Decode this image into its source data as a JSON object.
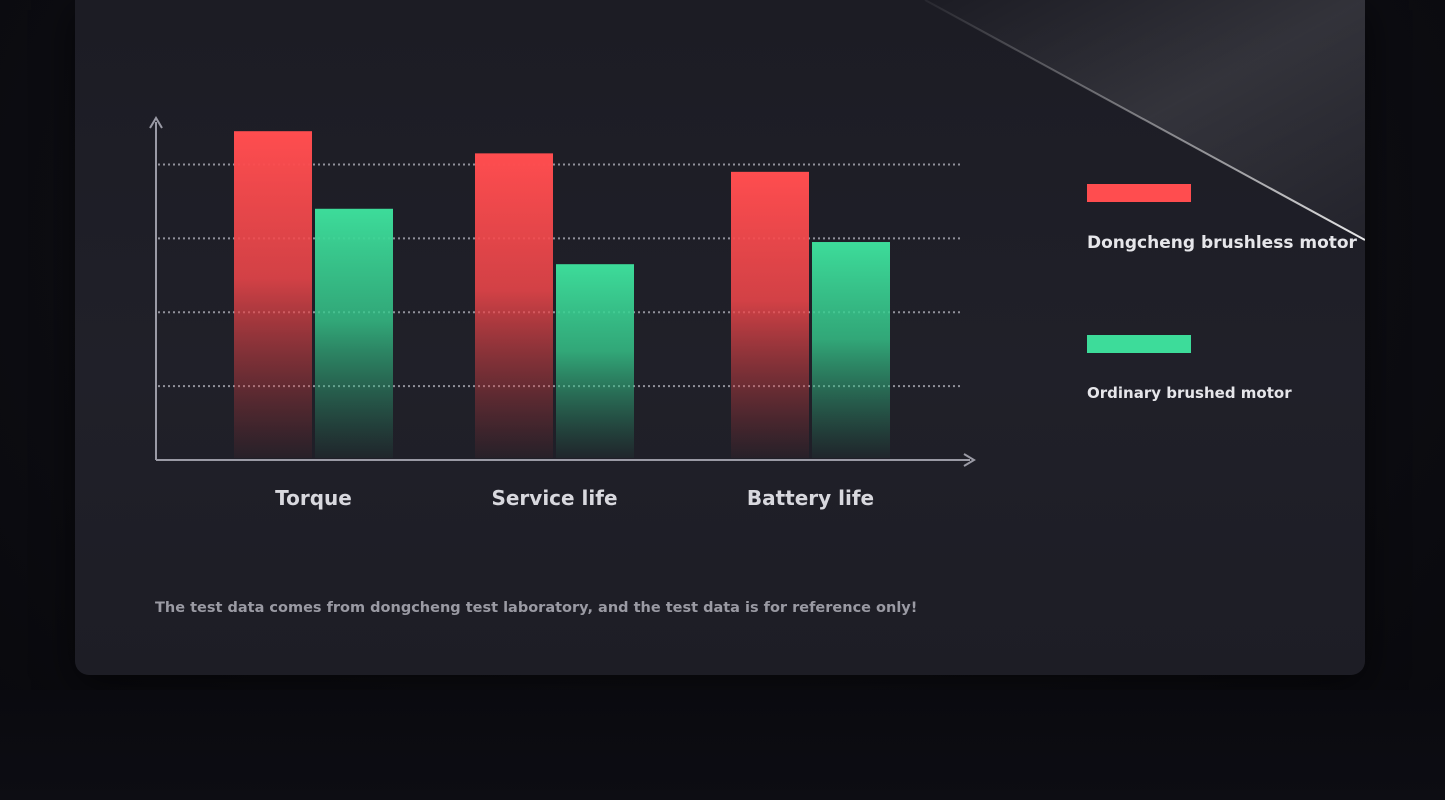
{
  "colors": {
    "brushless": "#ff4d4f",
    "brushed": "#3ddc9a",
    "axis": "#9a9aa5",
    "grid": "#b8b8c2",
    "category_label": "#d8d8de"
  },
  "legend": {
    "brushless_label": "Dongcheng brushless motor",
    "brushed_label": "Ordinary brushed motor"
  },
  "footnote": "The test data comes from dongcheng test laboratory, and the test data is for reference only!",
  "chart_data": {
    "type": "bar",
    "categories": [
      "Torque",
      "Service life",
      "Battery life"
    ],
    "series": [
      {
        "name": "Dongcheng brushless motor",
        "values": [
          4.45,
          4.15,
          3.9
        ]
      },
      {
        "name": "Ordinary brushed motor",
        "values": [
          3.4,
          2.65,
          2.95
        ]
      }
    ],
    "ylim": [
      0,
      4.5
    ],
    "grid": true,
    "grid_lines": [
      1,
      2,
      3,
      4
    ],
    "legend_position": "right"
  }
}
